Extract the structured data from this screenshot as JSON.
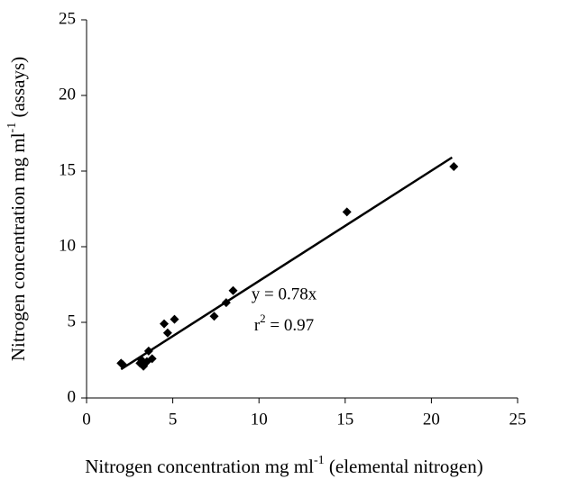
{
  "chart_data": {
    "type": "scatter",
    "x_label": [
      "Nitrogen concentration mg ml",
      "-1",
      " (elemental nitrogen)"
    ],
    "y_label": [
      "Nitrogen concentration mg ml",
      "-1",
      " (assays)"
    ],
    "x": [
      2.0,
      2.1,
      3.1,
      3.2,
      3.3,
      3.5,
      3.6,
      3.8,
      4.5,
      4.7,
      5.1,
      7.4,
      8.1,
      8.5,
      15.1,
      21.3
    ],
    "values": [
      2.3,
      2.2,
      2.3,
      2.5,
      2.1,
      2.4,
      3.1,
      2.6,
      4.9,
      4.3,
      5.2,
      5.4,
      6.3,
      7.1,
      12.3,
      15.3
    ],
    "color": "#000000",
    "trendline": {
      "x": [
        2.0,
        21.2
      ],
      "y": [
        1.9,
        15.9
      ]
    },
    "annotation": {
      "equation": "y = 0.78x",
      "r2": [
        "r",
        "2",
        " = 0.97"
      ]
    },
    "xlim": [
      0,
      25
    ],
    "ylim": [
      0,
      25
    ],
    "xticks": [
      0,
      5,
      10,
      15,
      20,
      25
    ],
    "yticks": [
      0,
      5,
      10,
      15,
      20,
      25
    ]
  }
}
